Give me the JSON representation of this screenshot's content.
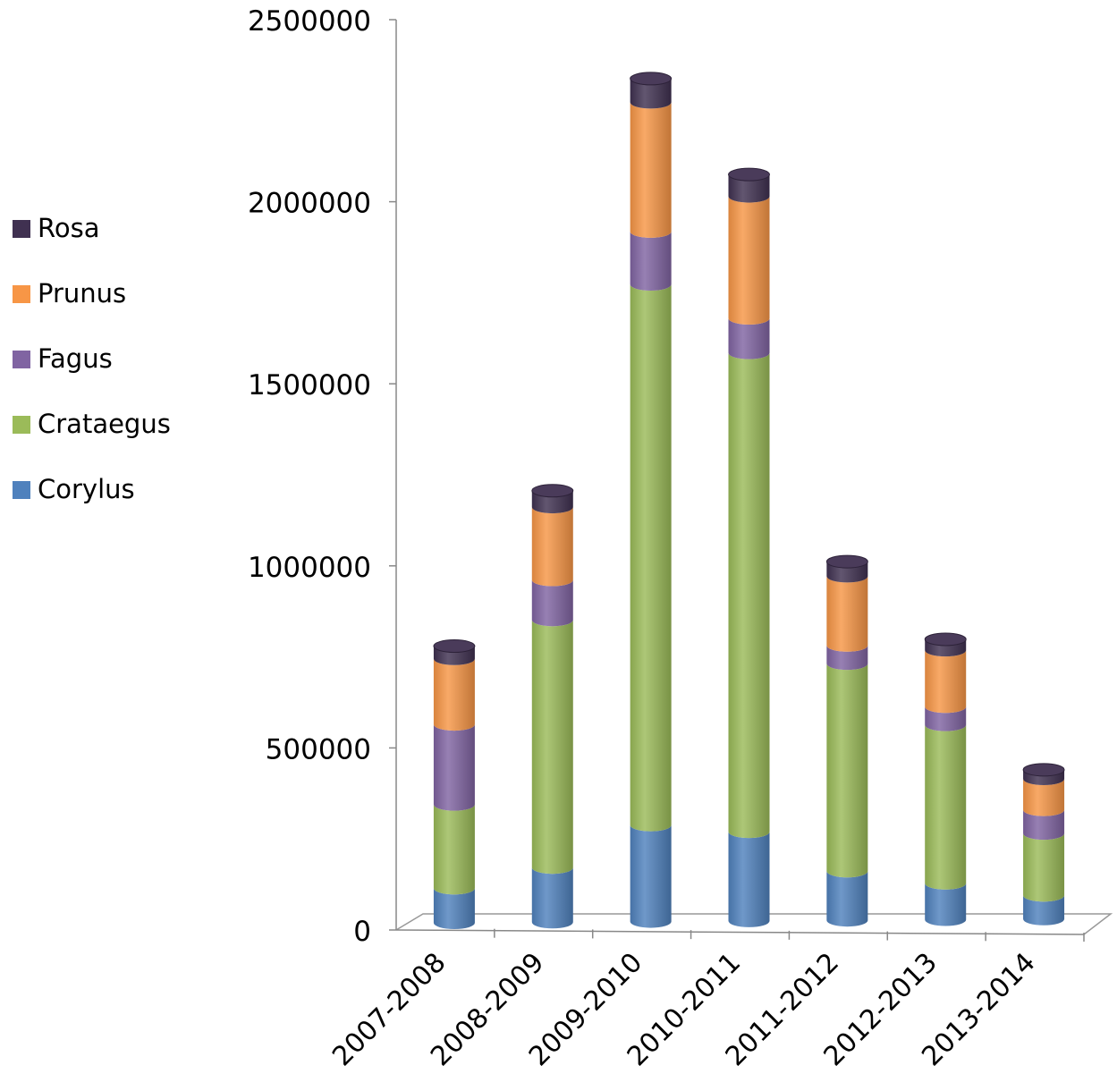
{
  "chart_data": {
    "type": "bar",
    "stacked": true,
    "style": "3d-cylinder",
    "categories": [
      "2007-2008",
      "2008-2009",
      "2009-2010",
      "2010-2011",
      "2011-2012",
      "2012-2013",
      "2013-2014"
    ],
    "series": [
      {
        "name": "Corylus",
        "color": "#4F81BD",
        "values": [
          95000,
          150000,
          265000,
          245000,
          135000,
          100000,
          65000
        ]
      },
      {
        "name": "Crataegus",
        "color": "#9BBB59",
        "values": [
          230000,
          680000,
          1485000,
          1315000,
          570000,
          435000,
          170000
        ]
      },
      {
        "name": "Fagus",
        "color": "#8064A2",
        "values": [
          220000,
          110000,
          145000,
          95000,
          50000,
          50000,
          65000
        ]
      },
      {
        "name": "Prunus",
        "color": "#F79646",
        "values": [
          180000,
          200000,
          355000,
          335000,
          190000,
          155000,
          85000
        ]
      },
      {
        "name": "Rosa",
        "color": "#403151",
        "values": [
          35000,
          45000,
          65000,
          60000,
          40000,
          30000,
          25000
        ]
      }
    ],
    "y_ticks": [
      "0",
      "500000",
      "1000000",
      "1500000",
      "2000000",
      "2500000"
    ],
    "ylim": [
      0,
      2500000
    ],
    "legend_position": "left",
    "grid": false,
    "title": "",
    "xlabel": "",
    "ylabel": ""
  }
}
